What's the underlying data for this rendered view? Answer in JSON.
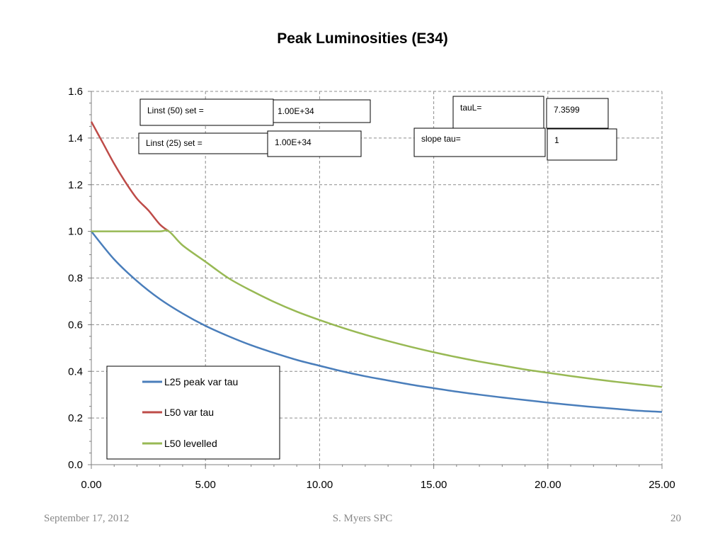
{
  "slide": {
    "title": "Peak Luminosities (E34)",
    "footer_date": "September 17, 2012",
    "footer_author": "S. Myers SPC",
    "page_number": "20"
  },
  "chart_data": {
    "type": "line",
    "title": "Peak Luminosities (E34)",
    "xlim": [
      0,
      25
    ],
    "ylim": [
      0,
      1.6
    ],
    "x_ticks": [
      "0.00",
      "5.00",
      "10.00",
      "15.00",
      "20.00",
      "25.00"
    ],
    "y_ticks": [
      "0.0",
      "0.2",
      "0.4",
      "0.6",
      "0.8",
      "1.0",
      "1.2",
      "1.4",
      "1.6"
    ],
    "grid": true,
    "legend_position": "bottom-left",
    "series": [
      {
        "name": "L25 peak var tau",
        "color": "#4a7ebb",
        "x": [
          0,
          1,
          2,
          3,
          4,
          5,
          6,
          7,
          8,
          9,
          10,
          11,
          12,
          13,
          14,
          15,
          16,
          17,
          18,
          19,
          20,
          21,
          22,
          23,
          24,
          25
        ],
        "y": [
          1.0,
          0.88,
          0.787,
          0.71,
          0.648,
          0.595,
          0.551,
          0.512,
          0.479,
          0.449,
          0.424,
          0.4,
          0.379,
          0.361,
          0.343,
          0.328,
          0.313,
          0.3,
          0.288,
          0.277,
          0.266,
          0.256,
          0.247,
          0.239,
          0.231,
          0.226
        ]
      },
      {
        "name": "L50 var tau",
        "color": "#be4b48",
        "x": [
          0,
          0.5,
          1,
          1.5,
          2,
          2.5,
          3,
          3.4
        ],
        "y": [
          1.47,
          1.38,
          1.29,
          1.21,
          1.14,
          1.09,
          1.03,
          1.0
        ]
      },
      {
        "name": "L50 levelled",
        "color": "#98b954",
        "x": [
          0,
          1,
          2,
          3,
          3.4,
          4,
          5,
          6,
          7,
          8,
          9,
          10,
          11,
          12,
          13,
          14,
          15,
          16,
          17,
          18,
          19,
          20,
          21,
          22,
          23,
          24,
          25
        ],
        "y": [
          1.0,
          1.0,
          1.0,
          1.0,
          1.0,
          0.94,
          0.87,
          0.8,
          0.746,
          0.698,
          0.656,
          0.62,
          0.587,
          0.557,
          0.53,
          0.505,
          0.482,
          0.461,
          0.442,
          0.425,
          0.408,
          0.394,
          0.38,
          0.367,
          0.355,
          0.344,
          0.333
        ]
      }
    ],
    "annotations": [
      {
        "label": "Linst (50) set =",
        "value": "1.00E+34"
      },
      {
        "label": "Linst (25) set =",
        "value": "1.00E+34"
      },
      {
        "label": "tauL=",
        "value": "7.3599"
      },
      {
        "label": "slope tau=",
        "value": "1"
      }
    ]
  }
}
